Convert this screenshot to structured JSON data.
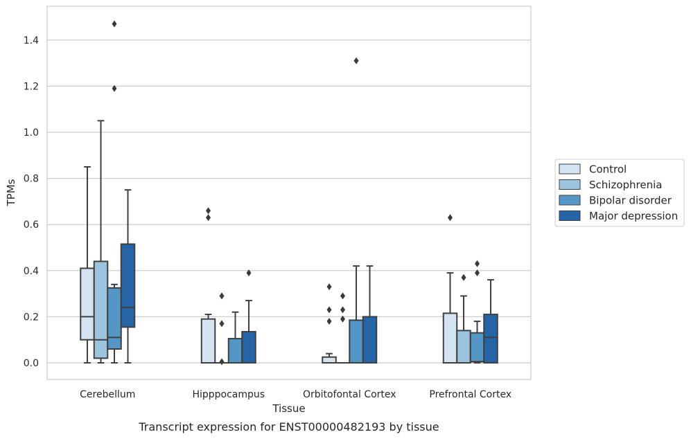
{
  "chart_data": {
    "type": "boxplot",
    "title": "",
    "caption": "Transcript expression for ENST00000482193 by tissue",
    "xlabel": "Tissue",
    "ylabel": "TPMs",
    "ylim": [
      -0.07,
      1.55
    ],
    "yticks": [
      "0.0",
      "0.2",
      "0.4",
      "0.6",
      "0.8",
      "1.0",
      "1.2",
      "1.4"
    ],
    "grid": "horizontal",
    "legend_position": "right",
    "categories": [
      "Cerebellum",
      "Hipppocampus",
      "Orbitofontal Cortex",
      "Prefrontal Cortex"
    ],
    "series": [
      {
        "name": "Control",
        "color": "#d3e3f2",
        "boxes": [
          {
            "whislo": 0.0,
            "q1": 0.1,
            "med": 0.2,
            "q3": 0.41,
            "whishi": 0.85,
            "fliers": []
          },
          {
            "whislo": 0.0,
            "q1": 0.0,
            "med": 0.0,
            "q3": 0.19,
            "whishi": 0.21,
            "fliers": [
              0.63,
              0.66
            ]
          },
          {
            "whislo": 0.0,
            "q1": 0.0,
            "med": 0.0,
            "q3": 0.025,
            "whishi": 0.04,
            "fliers": [
              0.18,
              0.23,
              0.33
            ]
          },
          {
            "whislo": 0.0,
            "q1": 0.0,
            "med": 0.0,
            "q3": 0.215,
            "whishi": 0.39,
            "fliers": [
              0.63
            ]
          }
        ]
      },
      {
        "name": "Schizophrenia",
        "color": "#9dc4df",
        "boxes": [
          {
            "whislo": 0.0,
            "q1": 0.02,
            "med": 0.1,
            "q3": 0.44,
            "whishi": 1.05,
            "fliers": []
          },
          {
            "whislo": 0.0,
            "q1": 0.0,
            "med": 0.0,
            "q3": 0.0,
            "whishi": 0.0,
            "fliers": [
              0.005,
              0.17,
              0.29
            ]
          },
          {
            "whislo": 0.0,
            "q1": 0.0,
            "med": 0.0,
            "q3": 0.0,
            "whishi": 0.0,
            "fliers": [
              0.19,
              0.23,
              0.29
            ]
          },
          {
            "whislo": 0.0,
            "q1": 0.0,
            "med": 0.0,
            "q3": 0.14,
            "whishi": 0.29,
            "fliers": [
              0.37
            ]
          }
        ]
      },
      {
        "name": "Bipolar disorder",
        "color": "#5497c6",
        "boxes": [
          {
            "whislo": 0.0,
            "q1": 0.06,
            "med": 0.11,
            "q3": 0.325,
            "whishi": 0.34,
            "fliers": [
              1.19,
              1.47
            ]
          },
          {
            "whislo": 0.0,
            "q1": 0.0,
            "med": 0.0,
            "q3": 0.105,
            "whishi": 0.22,
            "fliers": []
          },
          {
            "whislo": 0.0,
            "q1": 0.0,
            "med": 0.0,
            "q3": 0.185,
            "whishi": 0.42,
            "fliers": [
              1.31
            ]
          },
          {
            "whislo": 0.0,
            "q1": 0.005,
            "med": 0.005,
            "q3": 0.13,
            "whishi": 0.18,
            "fliers": [
              0.39,
              0.43
            ]
          }
        ]
      },
      {
        "name": "Major depression",
        "color": "#2565a7",
        "boxes": [
          {
            "whislo": 0.0,
            "q1": 0.155,
            "med": 0.24,
            "q3": 0.515,
            "whishi": 0.75,
            "fliers": []
          },
          {
            "whislo": 0.0,
            "q1": 0.0,
            "med": 0.0,
            "q3": 0.135,
            "whishi": 0.27,
            "fliers": [
              0.39
            ]
          },
          {
            "whislo": 0.0,
            "q1": 0.0,
            "med": 0.0,
            "q3": 0.2,
            "whishi": 0.42,
            "fliers": []
          },
          {
            "whislo": 0.0,
            "q1": 0.0,
            "med": 0.11,
            "q3": 0.21,
            "whishi": 0.36,
            "fliers": []
          }
        ]
      }
    ]
  }
}
